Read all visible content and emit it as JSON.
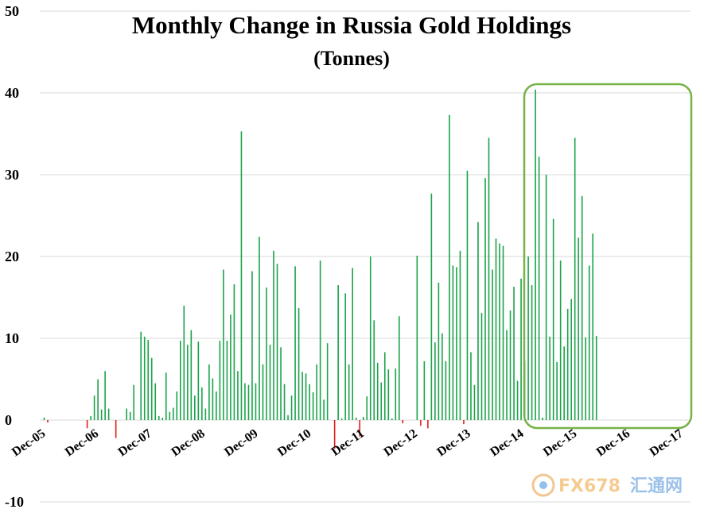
{
  "chart_data": {
    "type": "bar",
    "title": "Monthly Change in Russia Gold Holdings",
    "subtitle": "(Tonnes)",
    "xlabel": "",
    "ylabel": "",
    "ylim": [
      -10,
      50
    ],
    "yticks": [
      -10,
      0,
      10,
      20,
      30,
      40,
      50
    ],
    "grid": true,
    "legend": "none",
    "x_tick_labels": [
      "Dec-05",
      "Dec-06",
      "Dec-07",
      "Dec-08",
      "Dec-09",
      "Dec-10",
      "Dec-11",
      "Dec-12",
      "Dec-13",
      "Dec-14",
      "Dec-15",
      "Dec-16",
      "Dec-17"
    ],
    "highlight": {
      "from": "Jan-15",
      "to": "Feb-18"
    },
    "series": [
      {
        "name": "Monthly change",
        "start": "Dec-05",
        "values": [
          0.3,
          -0.3,
          0,
          0,
          0,
          0,
          0,
          0,
          0,
          0,
          0,
          0,
          -1,
          0.5,
          3,
          5,
          1.3,
          6,
          1.4,
          0,
          -2.2,
          0,
          0,
          1.4,
          1,
          4.3,
          0,
          10.8,
          10.2,
          9.8,
          7.6,
          4.5,
          0.5,
          0.3,
          5.8,
          1,
          1.5,
          3.5,
          9.7,
          14,
          9.2,
          11,
          3,
          9.6,
          4,
          1.4,
          6.8,
          5.1,
          3.5,
          9.7,
          18.4,
          9.7,
          12.9,
          16.6,
          6,
          35.3,
          4.5,
          4.3,
          18.2,
          4.5,
          22.4,
          6.8,
          16.2,
          9.2,
          20.7,
          19.1,
          8.9,
          4.4,
          0.6,
          3,
          18.8,
          13.7,
          5.9,
          5.7,
          4.4,
          3.4,
          6.8,
          19.5,
          2.5,
          9.4,
          0,
          -3.5,
          16.5,
          0.2,
          15.5,
          6.8,
          18.6,
          0.3,
          -2,
          0.4,
          2.9,
          20,
          12.2,
          7,
          4.6,
          8.3,
          6.2,
          0.2,
          6.3,
          12.7,
          -0.4,
          0,
          0,
          0,
          20.1,
          -0.7,
          7.2,
          -1,
          27.7,
          9.5,
          16.8,
          10.6,
          7.2,
          37.3,
          18.9,
          18.7,
          20.7,
          -0.5,
          30.5,
          8.3,
          4.3,
          24.2,
          13.1,
          29.6,
          34.5,
          18.4,
          22.2,
          21.6,
          21.3,
          11,
          13.4,
          16.3,
          4.8,
          17.3,
          7.2,
          20,
          16.5,
          40.4,
          32.2,
          0.3,
          30,
          10.2,
          24.6,
          7.1,
          19.5,
          9,
          13.6,
          14.8,
          34.5,
          22.3,
          27.4,
          10.1,
          18.9,
          22.8,
          10.3
        ]
      }
    ]
  },
  "watermark": {
    "text": "FX678",
    "text_cn": "汇通网"
  }
}
